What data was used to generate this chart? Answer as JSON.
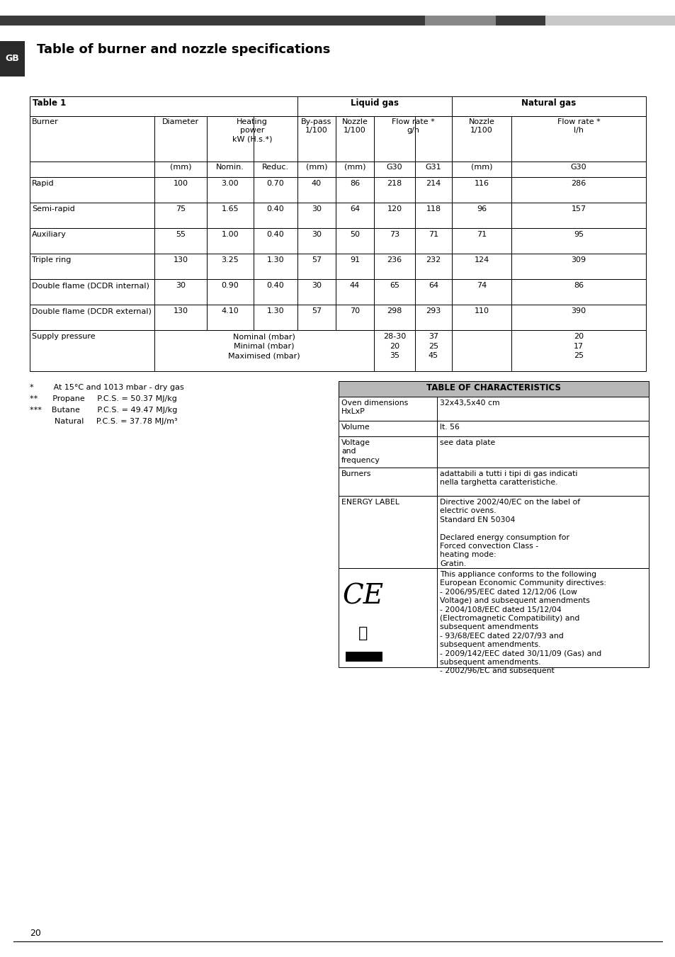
{
  "page_title": "Table of burner and nozzle specifications",
  "gb_label": "GB",
  "table1_label": "Table 1",
  "liquid_gas_label": "Liquid gas",
  "natural_gas_label": "Natural gas",
  "col_headers_row1_burner": "Burner",
  "col_headers_row1_diameter": "Diameter",
  "col_headers_row1_heating": "Heating\npower\nkW (H.s.*)",
  "col_headers_row1_bypass": "By-pass\n1/100",
  "col_headers_row1_nozzle1": "Nozzle\n1/100",
  "col_headers_row1_flowrate1": "Flow rate *\ng/h",
  "col_headers_row1_nozzle2": "Nozzle\n1/100",
  "col_headers_row1_flowrate2": "Flow rate *\nl/h",
  "col_headers_row2": [
    "",
    "(mm)",
    "Nomin.",
    "Reduc.",
    "(mm)",
    "(mm)",
    "G30",
    "G31",
    "(mm)",
    "G30"
  ],
  "table_rows": [
    [
      "Rapid",
      "100",
      "3.00",
      "0.70",
      "40",
      "86",
      "218",
      "214",
      "116",
      "286"
    ],
    [
      "Semi-rapid",
      "75",
      "1.65",
      "0.40",
      "30",
      "64",
      "120",
      "118",
      "96",
      "157"
    ],
    [
      "Auxiliary",
      "55",
      "1.00",
      "0.40",
      "30",
      "50",
      "73",
      "71",
      "71",
      "95"
    ],
    [
      "Triple ring",
      "130",
      "3.25",
      "1.30",
      "57",
      "91",
      "236",
      "232",
      "124",
      "309"
    ],
    [
      "Double flame (DCDR internal)",
      "30",
      "0.90",
      "0.40",
      "30",
      "44",
      "65",
      "64",
      "74",
      "86"
    ],
    [
      "Double flame (DCDR external)",
      "130",
      "4.10",
      "1.30",
      "57",
      "70",
      "298",
      "293",
      "110",
      "390"
    ]
  ],
  "supply_pressure_label": "Supply pressure",
  "supply_pressure_col_text": "Nominal (mbar)\nMinimal (mbar)\nMaximised (mbar)",
  "supply_pressure_g30": "28-30\n20\n35",
  "supply_pressure_g31": "37\n25\n45",
  "supply_pressure_nat": "20\n17\n25",
  "footnote1": "*        At 15°C and 1013 mbar - dry gas",
  "footnote2": "**      Propane     P.C.S. = 50.37 MJ/kg",
  "footnote3": "***    Butane       P.C.S. = 49.47 MJ/kg",
  "footnote4": "          Natural     P.C.S. = 37.78 MJ/m³",
  "char_table_title": "TABLE OF CHARACTERISTICS",
  "char_table_header_bg": "#b8b8b8",
  "char_rows": [
    [
      "Oven dimensions\nHxLxP",
      "32x43,5x40 cm"
    ],
    [
      "Volume",
      "lt. 56"
    ],
    [
      "Voltage\nand\nfrequency",
      "see data plate"
    ],
    [
      "Burners",
      "adattabili a tutti i tipi di gas indicati\nnella targhetta caratteristiche."
    ],
    [
      "ENERGY LABEL",
      "Directive 2002/40/EC on the label of\nelectric ovens.\nStandard EN 50304\n\nDeclared energy consumption for\nForced convection Class -\nheating mode:\nGratin."
    ],
    [
      "",
      "This appliance conforms to the following\nEuropean Economic Community directives:\n- 2006/95/EEC dated 12/12/06 (Low\nVoltage) and subsequent amendments\n- 2004/108/EEC dated 15/12/04\n(Electromagnetic Compatibility) and\nsubsequent amendments\n- 93/68/EEC dated 22/07/93 and\nsubsequent amendments.\n- 2009/142/EEC dated 30/11/09 (Gas) and\nsubsequent amendments.\n- 2002/96/EC and subsequent"
    ]
  ],
  "page_number": "20",
  "background_color": "#ffffff",
  "bar_dark": "#3a3a3a",
  "bar_mid": "#888888",
  "bar_light": "#c8c8c8"
}
